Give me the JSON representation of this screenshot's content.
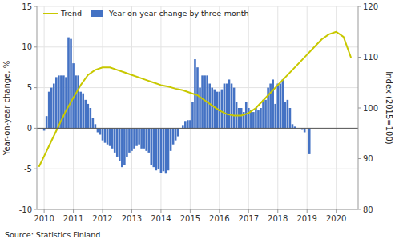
{
  "chart_data": {
    "type": "bar",
    "y_label": "Year-on-year change, %",
    "y2_label": "Index (2015=100)",
    "source": "Source: Statistics Finland",
    "xlim": [
      2009.75,
      2020.75
    ],
    "xticks": [
      2010,
      2011,
      2012,
      2013,
      2014,
      2015,
      2016,
      2017,
      2018,
      2019,
      2020
    ],
    "ylim": [
      -10,
      15
    ],
    "yticks": [
      -10,
      -5,
      0,
      5,
      10,
      15
    ],
    "y2lim": [
      80,
      120
    ],
    "y2ticks": [
      80,
      90,
      100,
      110,
      120
    ],
    "grid": true,
    "legend": "upper left",
    "series": [
      {
        "name": "Trend",
        "type": "line",
        "axis": "y2",
        "color": "#c8c800",
        "x": [
          2009.83,
          2010.0,
          2010.25,
          2010.5,
          2010.75,
          2011.0,
          2011.25,
          2011.5,
          2011.75,
          2012.0,
          2012.25,
          2012.5,
          2012.75,
          2013.0,
          2013.25,
          2013.5,
          2013.75,
          2014.0,
          2014.25,
          2014.5,
          2014.75,
          2015.0,
          2015.25,
          2015.5,
          2015.75,
          2016.0,
          2016.25,
          2016.5,
          2016.75,
          2017.0,
          2017.25,
          2017.5,
          2017.75,
          2018.0,
          2018.25,
          2018.5,
          2018.75,
          2019.0,
          2019.25,
          2019.5,
          2019.75,
          2020.0,
          2020.25,
          2020.5
        ],
        "values": [
          88.5,
          90.5,
          93.5,
          96.5,
          99.5,
          102.0,
          104.5,
          106.5,
          107.5,
          108.0,
          108.0,
          107.5,
          107.0,
          106.5,
          106.0,
          105.5,
          105.0,
          104.5,
          104.2,
          103.8,
          103.5,
          103.0,
          102.5,
          101.5,
          100.5,
          99.5,
          98.8,
          98.5,
          98.5,
          99.0,
          100.0,
          101.5,
          103.0,
          104.5,
          106.0,
          107.5,
          109.0,
          110.5,
          112.0,
          113.5,
          114.5,
          115.0,
          114.0,
          110.0
        ]
      },
      {
        "name": "Year-on-year change by three-month",
        "type": "bar",
        "color": "#4472C4",
        "x": [
          2010,
          2010.0833333333333,
          2010.1666666666667,
          2010.25,
          2010.3333333333333,
          2010.4166666666667,
          2010.5,
          2010.5833333333333,
          2010.6666666666667,
          2010.75,
          2010.8333333333333,
          2010.9166666666667,
          2011,
          2011.0833333333333,
          2011.1666666666667,
          2011.25,
          2011.3333333333333,
          2011.4166666666667,
          2011.5,
          2011.5833333333333,
          2011.6666666666667,
          2011.75,
          2011.8333333333333,
          2011.9166666666667,
          2012,
          2012.0833333333333,
          2012.1666666666667,
          2012.25,
          2012.3333333333333,
          2012.4166666666667,
          2012.5,
          2012.5833333333333,
          2012.6666666666667,
          2012.75,
          2012.8333333333333,
          2012.9166666666667,
          2013,
          2013.0833333333333,
          2013.1666666666667,
          2013.25,
          2013.3333333333333,
          2013.4166666666667,
          2013.5,
          2013.5833333333333,
          2013.6666666666667,
          2013.75,
          2013.8333333333333,
          2013.9166666666667,
          2014,
          2014.0833333333333,
          2014.1666666666667,
          2014.25,
          2014.3333333333333,
          2014.4166666666667,
          2014.5,
          2014.5833333333333,
          2014.6666666666667,
          2014.75,
          2014.8333333333333,
          2014.9166666666667,
          2015,
          2015.0833333333333,
          2015.1666666666667,
          2015.25,
          2015.3333333333333,
          2015.4166666666667,
          2015.5,
          2015.5833333333333,
          2015.6666666666667,
          2015.75,
          2015.8333333333333,
          2015.9166666666667,
          2016,
          2016.0833333333333,
          2016.1666666666667,
          2016.25,
          2016.3333333333333,
          2016.4166666666667,
          2016.5,
          2016.5833333333333,
          2016.6666666666667,
          2016.75,
          2016.8333333333333,
          2016.9166666666667,
          2017,
          2017.0833333333333,
          2017.1666666666667,
          2017.25,
          2017.3333333333333,
          2017.4166666666667,
          2017.5,
          2017.5833333333333,
          2017.6666666666667,
          2017.75,
          2017.8333333333333,
          2017.9166666666667,
          2018,
          2018.0833333333333,
          2018.1666666666667,
          2018.25,
          2018.3333333333333,
          2018.4166666666667,
          2018.5,
          2018.5833333333333,
          2018.6666666666667,
          2018.75,
          2018.8333333333333,
          2018.9166666666667,
          2019,
          2019.0833333333333
        ],
        "values": [
          -0.3,
          1.5,
          4.5,
          5.0,
          5.5,
          6.3,
          6.5,
          6.5,
          6.5,
          6.3,
          11.2,
          11.0,
          8.0,
          6.5,
          6.5,
          4.5,
          4.3,
          3.5,
          3.0,
          2.5,
          1.3,
          0.5,
          -0.5,
          -0.8,
          -1.5,
          -1.8,
          -2.0,
          -2.2,
          -2.5,
          -3.0,
          -3.5,
          -4.0,
          -4.8,
          -4.5,
          -3.5,
          -3.0,
          -2.8,
          -2.5,
          -2.2,
          -2.0,
          -2.5,
          -2.5,
          -2.8,
          -3.0,
          -4.5,
          -4.8,
          -5.2,
          -5.0,
          -5.5,
          -5.3,
          -5.6,
          -5.2,
          -2.8,
          -2.0,
          -1.5,
          -1.0,
          0.0,
          0.3,
          0.8,
          1.0,
          1.0,
          3.2,
          8.5,
          7.5,
          5.0,
          6.5,
          6.5,
          6.5,
          5.5,
          5.0,
          4.8,
          4.5,
          4.5,
          4.8,
          5.5,
          5.5,
          6.0,
          5.5,
          5.0,
          3.2,
          2.5,
          2.5,
          2.0,
          3.2,
          2.5,
          2.2,
          2.0,
          2.5,
          2.2,
          2.5,
          3.5,
          3.5,
          5.0,
          5.5,
          6.0,
          3.0,
          5.5,
          5.5,
          6.0,
          3.2,
          3.5,
          2.5,
          0.5,
          0.2,
          0.0,
          0.0,
          -0.2,
          -0.5,
          0.0,
          -3.2
        ]
      }
    ]
  }
}
